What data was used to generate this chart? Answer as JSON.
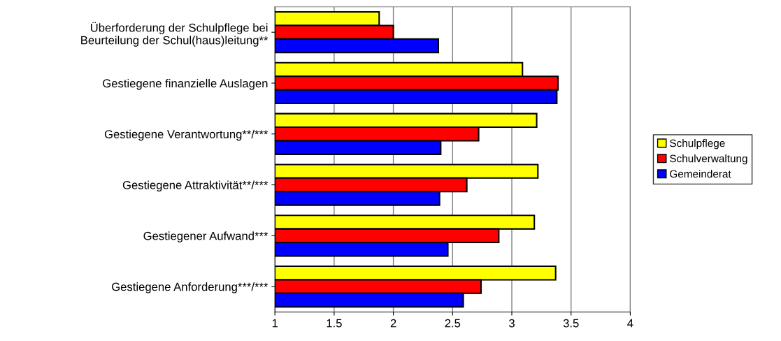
{
  "chart_data": {
    "type": "bar",
    "orientation": "horizontal",
    "categories": [
      "Überforderung der Schulpflege bei\nBeurteilung der Schul(haus)leitung**",
      "Gestiegene finanzielle Auslagen",
      "Gestiegene Verantwortung**/***",
      "Gestiegene Attraktivität**/***",
      "Gestiegener Aufwand***",
      "Gestiegene Anforderung***/***"
    ],
    "series": [
      {
        "name": "Schulpflege",
        "color": "#ffff00",
        "values": [
          1.88,
          3.09,
          3.21,
          3.22,
          3.19,
          3.37
        ]
      },
      {
        "name": "Schulverwaltung",
        "color": "#ff0000",
        "values": [
          2.0,
          3.39,
          2.72,
          2.62,
          2.89,
          2.74
        ]
      },
      {
        "name": "Gemeinderat",
        "color": "#0000ff",
        "values": [
          2.38,
          3.38,
          2.4,
          2.39,
          2.46,
          2.59
        ]
      }
    ],
    "xlim": [
      1,
      4
    ],
    "xticks": [
      1,
      1.5,
      2,
      2.5,
      3,
      3.5,
      4
    ],
    "grid": "x",
    "legend": "right"
  }
}
